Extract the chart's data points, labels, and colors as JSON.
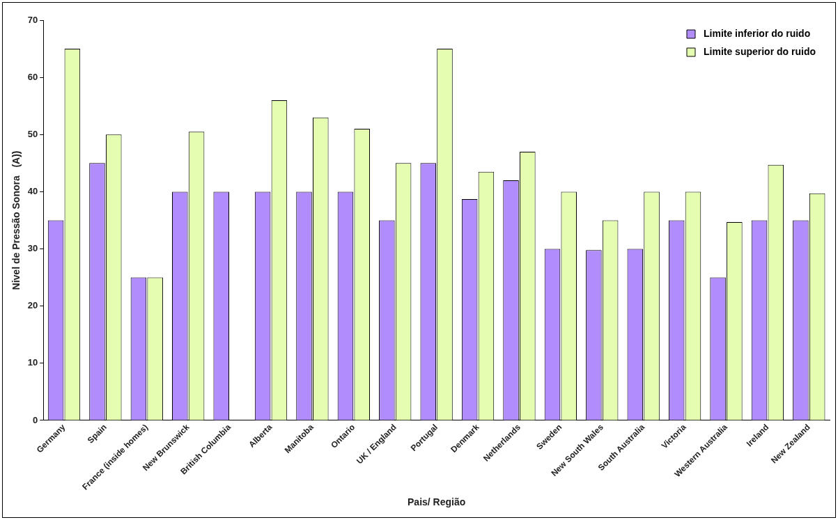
{
  "chart_data": {
    "type": "bar",
    "xlabel": "Pais/ Região",
    "ylabel": "Nivel de Pressão Sonora   (A))",
    "categories": [
      "Germany",
      "Spain",
      "France (inside homes)",
      "New Brunswick",
      "British Columbia",
      "Alberta",
      "Manitoba",
      "Ontario",
      "UK / England",
      "Portugal",
      "Denmark",
      "Netherlands",
      "Sweden",
      "New South Wales",
      "South Australia",
      "Victoria",
      "Western Australia",
      "Ireland",
      "New Zealand"
    ],
    "series": [
      {
        "name": "Limite inferior do ruido",
        "color": "#b18cfb",
        "values": [
          35,
          45,
          25,
          40,
          40,
          40,
          40,
          40,
          35,
          45,
          38.7,
          42,
          30,
          29.8,
          30,
          35,
          25,
          35,
          35
        ]
      },
      {
        "name": "Limite superior do ruido",
        "color": "#e4fdb0",
        "values": [
          65,
          50,
          25,
          50.5,
          0,
          56,
          53,
          51,
          45,
          65,
          43.5,
          47,
          40,
          35,
          40,
          40,
          34.7,
          44.7,
          39.7
        ]
      }
    ],
    "ylim": [
      0,
      70
    ],
    "yticks": [
      0,
      10,
      20,
      30,
      40,
      50,
      60,
      70
    ],
    "grid": false,
    "legend": "top right"
  }
}
